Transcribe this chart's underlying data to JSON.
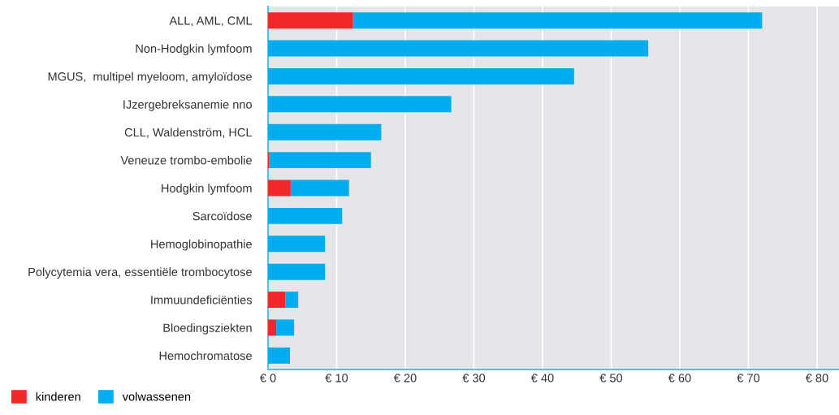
{
  "chart_data": {
    "type": "bar",
    "orientation": "horizontal",
    "stacked": true,
    "categories": [
      "ALL, AML, CML",
      "Non-Hodgkin lymfoom",
      "MGUS,  multipel myeloom, amyloïdose",
      "IJzergebreksanemie nno",
      "CLL, Waldenström, HCL",
      "Veneuze trombo-embolie",
      "Hodgkin lymfoom",
      "Sarcoïdose",
      "Hemoglobinopathie",
      "Polycytemia vera, essentiële trombocytose",
      "Immuundeficiënties",
      "Bloedingsziekten",
      "Hemochromatose"
    ],
    "series": [
      {
        "name": "kinderen",
        "color": "#f0282a",
        "values": [
          12.4,
          0,
          0,
          0,
          0,
          0.2,
          3.3,
          0,
          0,
          0,
          2.5,
          1.2,
          0
        ]
      },
      {
        "name": "volwassenen",
        "color": "#00aeef",
        "values": [
          59.6,
          55.4,
          44.6,
          26.7,
          16.5,
          14.8,
          8.5,
          10.8,
          8.3,
          8.3,
          1.9,
          2.6,
          3.2
        ]
      }
    ],
    "xlim": [
      0,
      83.2
    ],
    "xticks": [
      {
        "value": 0,
        "label": "€ 0"
      },
      {
        "value": 10,
        "label": "€ 10"
      },
      {
        "value": 20,
        "label": "€ 20"
      },
      {
        "value": 30,
        "label": "€ 30"
      },
      {
        "value": 40,
        "label": "€ 40"
      },
      {
        "value": 50,
        "label": "€ 50"
      },
      {
        "value": 60,
        "label": "€ 60"
      },
      {
        "value": 70,
        "label": "€ 70"
      },
      {
        "value": 80,
        "label": "€ 80"
      }
    ],
    "grid": "x",
    "legend": "bottom left"
  }
}
